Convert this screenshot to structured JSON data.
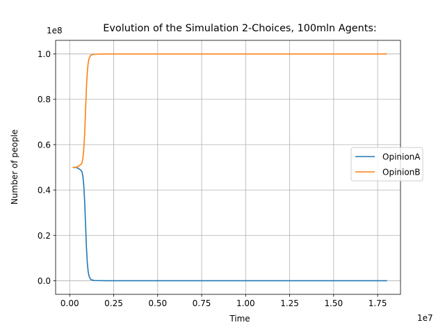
{
  "chart_data": {
    "type": "line",
    "title": "Evolution of the Simulation 2-Choices, 100mln Agents:",
    "xlabel": "Time",
    "ylabel": "Number of people",
    "x_offset_text": "1e7",
    "y_offset_text": "1e8",
    "x_scale": 10000000,
    "y_scale": 100000000,
    "xlim": [
      -0.08,
      1.88
    ],
    "ylim": [
      -0.06,
      1.06
    ],
    "x_ticks": [
      0.0,
      0.25,
      0.5,
      0.75,
      1.0,
      1.25,
      1.5,
      1.75
    ],
    "x_tick_labels": [
      "0.00",
      "0.25",
      "0.50",
      "0.75",
      "1.00",
      "1.25",
      "1.50",
      "1.75"
    ],
    "y_ticks": [
      0.0,
      0.2,
      0.4,
      0.6,
      0.8,
      1.0
    ],
    "y_tick_labels": [
      "0.0",
      "0.2",
      "0.4",
      "0.6",
      "0.8",
      "1.0"
    ],
    "grid": true,
    "legend_position": "center-right",
    "series": [
      {
        "name": "OpinionA",
        "color": "#1f77b4",
        "x": [
          0.02,
          0.04,
          0.06,
          0.07,
          0.075,
          0.08,
          0.085,
          0.09,
          0.095,
          0.1,
          0.105,
          0.11,
          0.12,
          0.14,
          0.2,
          0.5,
          1.0,
          1.5,
          1.8
        ],
        "y": [
          0.5,
          0.499,
          0.49,
          0.48,
          0.46,
          0.42,
          0.35,
          0.25,
          0.15,
          0.08,
          0.04,
          0.02,
          0.005,
          0.001,
          0.0,
          0.0,
          0.0,
          0.0,
          0.0
        ]
      },
      {
        "name": "OpinionB",
        "color": "#ff7f0e",
        "x": [
          0.02,
          0.04,
          0.06,
          0.07,
          0.075,
          0.08,
          0.085,
          0.09,
          0.095,
          0.1,
          0.105,
          0.11,
          0.12,
          0.14,
          0.2,
          0.5,
          1.0,
          1.5,
          1.8
        ],
        "y": [
          0.5,
          0.501,
          0.51,
          0.52,
          0.54,
          0.58,
          0.65,
          0.75,
          0.85,
          0.92,
          0.96,
          0.98,
          0.995,
          0.999,
          1.0,
          1.0,
          1.0,
          1.0,
          1.0
        ]
      }
    ]
  }
}
